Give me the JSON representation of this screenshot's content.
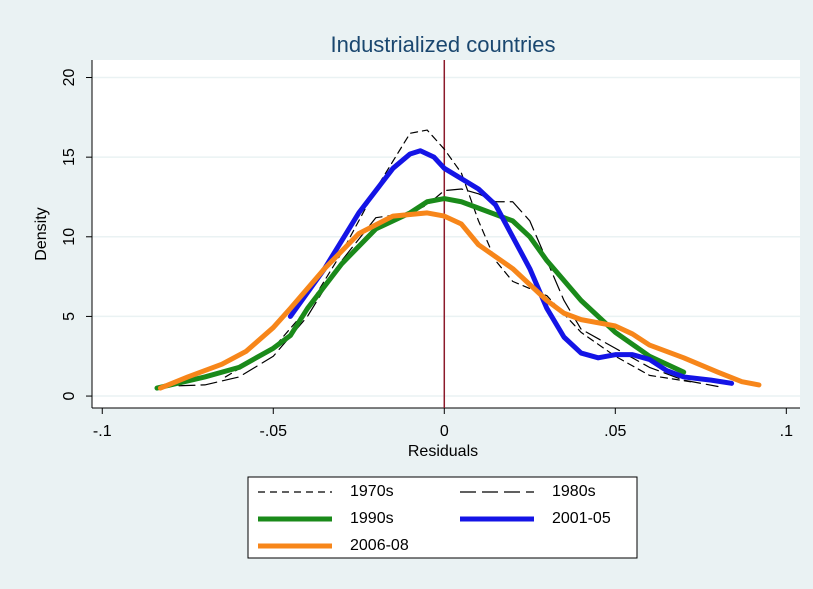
{
  "chart_data": {
    "type": "line",
    "title": "Industrialized countries",
    "x_label": "Residuals",
    "y_label": "Density",
    "xlim": [
      -0.103,
      0.104
    ],
    "ylim": [
      -0.75,
      21.1
    ],
    "xticks": [
      {
        "value": -0.1,
        "label": "-.1"
      },
      {
        "value": -0.05,
        "label": "-.05"
      },
      0,
      {
        "value": 0.05,
        "label": ".05"
      },
      {
        "value": 0.1,
        "label": ".1"
      }
    ],
    "yticks": [
      0,
      5,
      10,
      15,
      20
    ],
    "grid": true,
    "xline": 0,
    "xline_color": "#8b1a2b",
    "legend": "bottom",
    "series": [
      {
        "name": "1970s",
        "color": "#000000",
        "style": "dashed",
        "width": 1.2,
        "x": [
          -0.064,
          -0.05,
          -0.04,
          -0.03,
          -0.02,
          -0.01,
          -0.005,
          0,
          0.005,
          0.01,
          0.015,
          0.02,
          0.03,
          0.04,
          0.05,
          0.06,
          0.072
        ],
        "values": [
          1.2,
          3,
          5.5,
          9,
          13,
          16.5,
          16.7,
          15.5,
          14,
          11,
          8.5,
          7.2,
          6.3,
          4,
          2.5,
          1.3,
          0.9
        ]
      },
      {
        "name": "1980s",
        "color": "#000000",
        "style": "longdash",
        "width": 1.2,
        "x": [
          -0.084,
          -0.07,
          -0.06,
          -0.05,
          -0.04,
          -0.03,
          -0.02,
          -0.01,
          -0.005,
          0,
          0.005,
          0.01,
          0.015,
          0.02,
          0.025,
          0.03,
          0.035,
          0.04,
          0.05,
          0.06,
          0.07,
          0.08
        ],
        "values": [
          0.6,
          0.7,
          1.2,
          2.5,
          5,
          8.5,
          11.2,
          11.5,
          12,
          12.9,
          13,
          12.7,
          12.2,
          12.2,
          11,
          8.5,
          6,
          4.2,
          3,
          1.8,
          1,
          0.6
        ]
      },
      {
        "name": "1990s",
        "color": "#1a8a1a",
        "style": "solid",
        "width": 5,
        "x": [
          -0.084,
          -0.07,
          -0.06,
          -0.05,
          -0.045,
          -0.04,
          -0.03,
          -0.02,
          -0.01,
          -0.005,
          0,
          0.005,
          0.01,
          0.02,
          0.025,
          0.03,
          0.04,
          0.05,
          0.06,
          0.07
        ],
        "values": [
          0.5,
          1.2,
          1.8,
          3,
          3.8,
          5.5,
          8.3,
          10.5,
          11.5,
          12.2,
          12.4,
          12.2,
          11.8,
          11,
          10,
          8.5,
          6,
          4,
          2.5,
          1.5
        ]
      },
      {
        "name": "2001-05",
        "color": "#1414e6",
        "style": "solid",
        "width": 5,
        "x": [
          -0.045,
          -0.035,
          -0.025,
          -0.015,
          -0.01,
          -0.007,
          -0.003,
          0,
          0.01,
          0.015,
          0.02,
          0.025,
          0.03,
          0.035,
          0.04,
          0.045,
          0.05,
          0.055,
          0.06,
          0.065,
          0.07,
          0.078,
          0.084
        ],
        "values": [
          5,
          8,
          11.5,
          14.3,
          15.2,
          15.4,
          15,
          14.3,
          13,
          12,
          10,
          8,
          5.5,
          3.7,
          2.7,
          2.4,
          2.6,
          2.6,
          2.3,
          1.6,
          1.2,
          1,
          0.8
        ]
      },
      {
        "name": "2006-08",
        "color": "#f7861a",
        "style": "solid",
        "width": 5,
        "x": [
          -0.083,
          -0.075,
          -0.065,
          -0.058,
          -0.05,
          -0.045,
          -0.035,
          -0.025,
          -0.015,
          -0.005,
          0,
          0.005,
          0.01,
          0.02,
          0.03,
          0.035,
          0.04,
          0.05,
          0.055,
          0.06,
          0.07,
          0.08,
          0.087,
          0.092
        ],
        "values": [
          0.5,
          1.2,
          2,
          2.8,
          4.3,
          5.5,
          8,
          10.2,
          11.3,
          11.5,
          11.3,
          10.8,
          9.5,
          8,
          6,
          5.2,
          4.8,
          4.4,
          3.9,
          3.2,
          2.4,
          1.5,
          0.9,
          0.7
        ]
      }
    ]
  }
}
